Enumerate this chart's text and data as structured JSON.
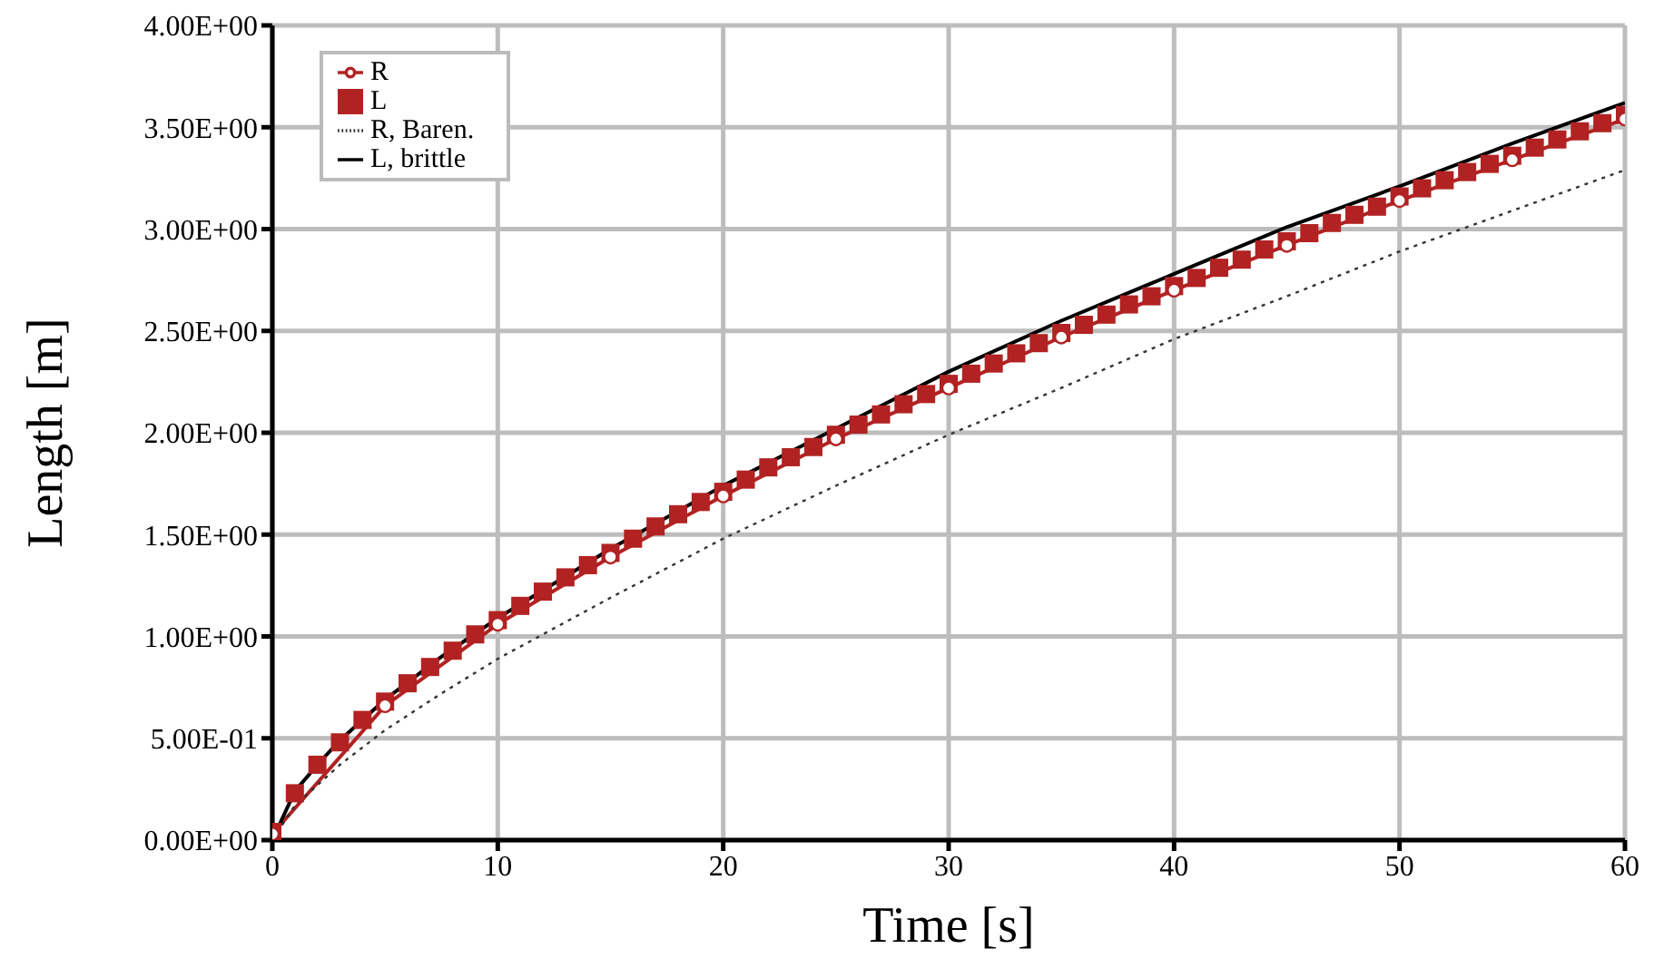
{
  "chart_data": {
    "type": "line",
    "xlabel": "Time [s]",
    "ylabel": "Length [m]",
    "xlim": [
      0,
      60
    ],
    "xticks": [
      0,
      10,
      20,
      30,
      40,
      50,
      60
    ],
    "ylim": [
      0,
      4
    ],
    "yticks": [
      {
        "value": 0,
        "label": "0.00E+00"
      },
      {
        "value": 0.5,
        "label": "5.00E-01"
      },
      {
        "value": 1,
        "label": "1.00E+00"
      },
      {
        "value": 1.5,
        "label": "1.50E+00"
      },
      {
        "value": 2,
        "label": "2.00E+00"
      },
      {
        "value": 2.5,
        "label": "2.50E+00"
      },
      {
        "value": 3,
        "label": "3.00E+00"
      },
      {
        "value": 3.5,
        "label": "3.50E+00"
      },
      {
        "value": 4,
        "label": "4.00E+00"
      }
    ],
    "grid": true,
    "legend": "top left",
    "series": [
      {
        "name": "R",
        "type": "line",
        "color": "#b22222",
        "marker": "circle",
        "line_style": "solid",
        "x": [
          0,
          5,
          10,
          15,
          20,
          25,
          30,
          35,
          40,
          45,
          50,
          55,
          60
        ],
        "values": [
          0.03,
          0.66,
          1.06,
          1.39,
          1.69,
          1.97,
          2.22,
          2.47,
          2.7,
          2.92,
          3.14,
          3.34,
          3.54
        ]
      },
      {
        "name": "L",
        "type": "scatter",
        "color": "#b22222",
        "marker": "square",
        "x": [
          0,
          1,
          2,
          3,
          4,
          5,
          6,
          7,
          8,
          9,
          10,
          11,
          12,
          13,
          14,
          15,
          16,
          17,
          18,
          19,
          20,
          21,
          22,
          23,
          24,
          25,
          26,
          27,
          28,
          29,
          30,
          31,
          32,
          33,
          34,
          35,
          36,
          37,
          38,
          39,
          40,
          41,
          42,
          43,
          44,
          45,
          46,
          47,
          48,
          49,
          50,
          51,
          52,
          53,
          54,
          55,
          56,
          57,
          58,
          59,
          60
        ],
        "values": [
          0.04,
          0.23,
          0.37,
          0.48,
          0.59,
          0.68,
          0.77,
          0.85,
          0.93,
          1.01,
          1.08,
          1.15,
          1.22,
          1.29,
          1.35,
          1.41,
          1.48,
          1.54,
          1.6,
          1.66,
          1.71,
          1.77,
          1.83,
          1.88,
          1.93,
          1.99,
          2.04,
          2.09,
          2.14,
          2.19,
          2.24,
          2.29,
          2.34,
          2.39,
          2.44,
          2.49,
          2.53,
          2.58,
          2.63,
          2.67,
          2.72,
          2.76,
          2.81,
          2.85,
          2.9,
          2.94,
          2.98,
          3.03,
          3.07,
          3.11,
          3.16,
          3.2,
          3.24,
          3.28,
          3.32,
          3.36,
          3.4,
          3.44,
          3.48,
          3.52,
          3.56
        ]
      },
      {
        "name": "R, Baren.",
        "type": "line",
        "color": "#333333",
        "marker": "none",
        "line_style": "dotted",
        "x": [
          0,
          1,
          2,
          3,
          5,
          7.5,
          10,
          15,
          20,
          25,
          30,
          35,
          40,
          45,
          50,
          55,
          60
        ],
        "values": [
          0,
          0.17,
          0.27,
          0.37,
          0.54,
          0.72,
          0.89,
          1.19,
          1.48,
          1.74,
          1.99,
          2.22,
          2.46,
          2.67,
          2.89,
          3.09,
          3.29
        ]
      },
      {
        "name": "L, brittle",
        "type": "line",
        "color": "#000000",
        "marker": "none",
        "line_style": "solid",
        "x": [
          0,
          1,
          2,
          3,
          5,
          7.5,
          10,
          15,
          20,
          25,
          30,
          35,
          40,
          45,
          50,
          55,
          60
        ],
        "values": [
          0,
          0.24,
          0.37,
          0.49,
          0.69,
          0.9,
          1.09,
          1.43,
          1.74,
          2.02,
          2.3,
          2.55,
          2.78,
          3.01,
          3.21,
          3.42,
          3.62
        ]
      }
    ]
  }
}
